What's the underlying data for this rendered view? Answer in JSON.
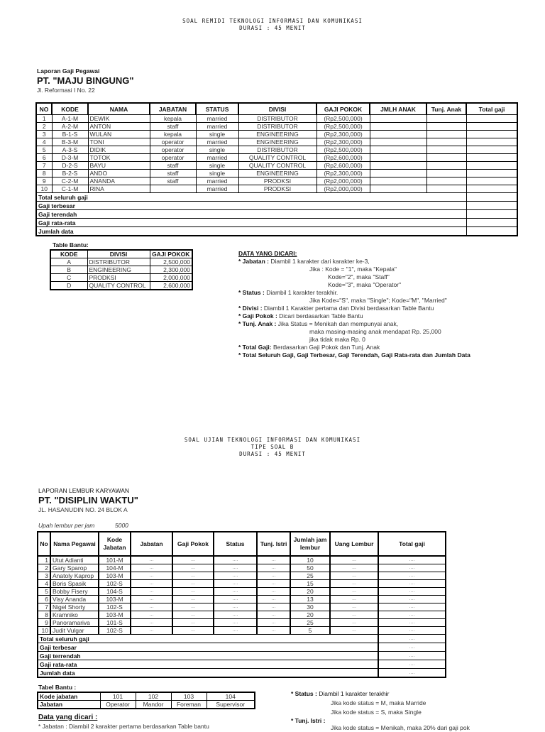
{
  "doc1": {
    "exam_title": "SOAL REMIDI TEKNOLOGI INFORMASI DAN KOMUNIKASI",
    "duration": "DURASI : 45 MENIT",
    "report_label": "Laporan Gaji Pegawai",
    "company": "PT. \"MAJU BINGUNG\"",
    "address": "Jl. Reformasi I No. 22",
    "table": {
      "headers": [
        "NO",
        "KODE",
        "NAMA",
        "JABATAN",
        "STATUS",
        "DIVISI",
        "GAJI POKOK",
        "JMLH ANAK",
        "Tunj. Anak",
        "Total gaji"
      ],
      "rows": [
        [
          "1",
          "A-1-M",
          "DEWIK",
          "kepala",
          "married",
          "DISTRIBUTOR",
          "(Rp2,500,000)",
          "",
          "",
          ""
        ],
        [
          "2",
          "A-2-M",
          "ANTON",
          "staff",
          "married",
          "DISTRIBUTOR",
          "(Rp2,500,000)",
          "",
          "",
          ""
        ],
        [
          "3",
          "B-1-S",
          "WULAN",
          "kepala",
          "single",
          "ENGINEERING",
          "(Rp2,300,000)",
          "",
          "",
          ""
        ],
        [
          "4",
          "B-3-M",
          "TONI",
          "operator",
          "married",
          "ENGINEERING",
          "(Rp2,300,000)",
          "",
          "",
          ""
        ],
        [
          "5",
          "A-3-S",
          "DIDIK",
          "operator",
          "single",
          "DISTRIBUTOR",
          "(Rp2,500,000)",
          "",
          "",
          ""
        ],
        [
          "6",
          "D-3-M",
          "TOTOK",
          "operator",
          "married",
          "QUALITY CONTROL",
          "(Rp2,600,000)",
          "",
          "",
          ""
        ],
        [
          "7",
          "D-2-S",
          "BAYU",
          "staff",
          "single",
          "QUALITY CONTROL",
          "(Rp2,600,000)",
          "",
          "",
          ""
        ],
        [
          "8",
          "B-2-S",
          "ANDO",
          "staff",
          "single",
          "ENGINEERING",
          "(Rp2,300,000)",
          "",
          "",
          ""
        ],
        [
          "9",
          "C-2-M",
          "ANANDA",
          "staff",
          "married",
          "PRODKSI",
          "(Rp2,000,000)",
          "",
          "",
          ""
        ],
        [
          "10",
          "C-1-M",
          "RINA",
          "",
          "married",
          "PRODKSI",
          "(Rp2,000,000)",
          "",
          "",
          ""
        ]
      ],
      "summary": [
        "Total seluruh gaji",
        "Gaji terbesar",
        "Gaji terendah",
        "Gaji rata-rata",
        "Jumlah data"
      ]
    },
    "helper": {
      "title": "Table Bantu:",
      "headers": [
        "KODE",
        "DIVISI",
        "GAJI POKOK"
      ],
      "rows": [
        [
          "A",
          "DISTRIBUTOR",
          "2,500,000"
        ],
        [
          "B",
          "ENGINEERING",
          "2,300,000"
        ],
        [
          "C",
          "PRODKSI",
          "2,000,000"
        ],
        [
          "D",
          "QUALITY CONTROL",
          "2,600,000"
        ]
      ]
    },
    "sought": {
      "title": "DATA YANG DICARI:",
      "lines": [
        {
          "bold": "* Jabatan :",
          "text": " Diambil 1 karakter dari karakter ke-3,",
          "indent": 0
        },
        {
          "bold": "",
          "text": "Jika : Kode = \"1\", maka \"Kepala\"",
          "indent": 100
        },
        {
          "bold": "",
          "text": "Kode=\"2\", maka \"Staff\"",
          "indent": 126
        },
        {
          "bold": "",
          "text": "Kode=\"3\", maka \"Operator\"",
          "indent": 126
        },
        {
          "bold": "* Status :",
          "text": " Diambil 1 karakter terakhir.",
          "indent": 0
        },
        {
          "bold": "",
          "text": "Jika Kode=\"S\", maka \"Single\"; Kode=\"M\", \"Married\"",
          "indent": 100
        },
        {
          "bold": "* Divisi :",
          "text": " Diambil 1 Karakter pertama dan Divisi berdasarkan Table Bantu",
          "indent": 0
        },
        {
          "bold": "* Gaji Pokok :",
          "text": " Dicari berdasarkan Table Bantu",
          "indent": 0
        },
        {
          "bold": "* Tunj. Anak :",
          "text": " Jika Status = Menikah dan mempunyai anak,",
          "indent": 0
        },
        {
          "bold": "",
          "text": "maka masing-masing anak mendapat Rp. 25,000",
          "indent": 100
        },
        {
          "bold": "",
          "text": "jika tidak maka Rp. 0",
          "indent": 100
        },
        {
          "bold": "* Total Gaji:",
          "text": " Berdasarkan Gaji Pokok dan Tunj. Anak",
          "indent": 0
        },
        {
          "bold": "* Total Seluruh Gaji, Gaji Terbesar, Gaji Terendah, Gaji Rata-rata dan Jumlah Data",
          "text": "",
          "indent": 0
        }
      ]
    }
  },
  "doc2": {
    "exam_title": "SOAL UJIAN TEKNOLOGI INFORMASI DAN KOMUNIKASI",
    "type": "TIPE SOAL B",
    "duration": "DURASI : 45 MENIT",
    "report_label": "LAPORAN LEMBUR KARYAWAN",
    "company": "PT. \"DISIPLIN WAKTU\"",
    "address": "JL. HASANUDIN NO. 24 BLOK A",
    "rate_label": "Upah lembur per jam",
    "rate_value": "5000",
    "table": {
      "headers": [
        "No",
        "Nama Pegawai",
        "Kode Jabatan",
        "Jabatan",
        "Gaji Pokok",
        "Status",
        "Tunj. Istri",
        "Jumlah jam lembur",
        "Uang Lembur",
        "Total gaji"
      ],
      "rows": [
        [
          "1",
          "Utut Adianti",
          "101-M",
          "...",
          "...",
          "....",
          "...",
          "10",
          "...",
          "...."
        ],
        [
          "2",
          "Gary Sparop",
          "104-M",
          "...",
          "...",
          "....",
          "...",
          "50",
          "...",
          "...."
        ],
        [
          "3",
          "Anatoly Kaprop",
          "103-M",
          "...",
          "...",
          "....",
          "...",
          "25",
          "...",
          "...."
        ],
        [
          "4",
          "Boris Spasik",
          "102-S",
          "...",
          "...",
          "....",
          "...",
          "15",
          "...",
          "...."
        ],
        [
          "5",
          "Bobby Fisery",
          "104-S",
          "...",
          "...",
          "....",
          "...",
          "20",
          "...",
          "...."
        ],
        [
          "6",
          "Visy Ananda",
          "103-M",
          "...",
          "...",
          "....",
          "...",
          "13",
          "...",
          "...."
        ],
        [
          "7",
          "Nigel Shorty",
          "102-S",
          "...",
          "...",
          "....",
          "...",
          "30",
          "...",
          "...."
        ],
        [
          "8",
          "Kramniko",
          "103-M",
          "...",
          "...",
          "....",
          "...",
          "20",
          "...",
          "...."
        ],
        [
          "9",
          "Panoramariva",
          "101-S",
          "...",
          "...",
          "....",
          "...",
          "25",
          "...",
          "...."
        ],
        [
          "10",
          "Judit Vulgar",
          "102-S",
          "...",
          "...",
          "....",
          "...",
          "5",
          "...",
          "...."
        ]
      ],
      "summary": [
        {
          "label": "Total seluruh gaji",
          "value": "...."
        },
        {
          "label": "Gaji terbesar",
          "value": "...."
        },
        {
          "label": "Gaji terrendah",
          "value": "...."
        },
        {
          "label": "Gaji rata-rata",
          "value": "...."
        },
        {
          "label": "Jumlah data",
          "value": "...."
        }
      ]
    },
    "helper": {
      "title": "Tabel Bantu :",
      "rows": [
        [
          "Kode jabatan",
          "101",
          "102",
          "103",
          "104"
        ],
        [
          "Jabatan",
          "Operator",
          "Mandor",
          "Foreman",
          "Supervisor"
        ]
      ]
    },
    "sought_title": "Data yang dicari :",
    "sought_jabatan": "* Jabatan : Diambil 2 karakter pertama berdasarkan Table bantu",
    "status_bold": "* Status :",
    "status_text": " Diambil 1 karakter terakhir",
    "status_m": "Jika kode status = M, maka Marride",
    "status_s": "Jika kode status = S, maka Single",
    "istri_bold": "* Tunj. Istri :",
    "istri_text": "Jika kode status = Menikah, maka 20% dari gaji pok"
  }
}
